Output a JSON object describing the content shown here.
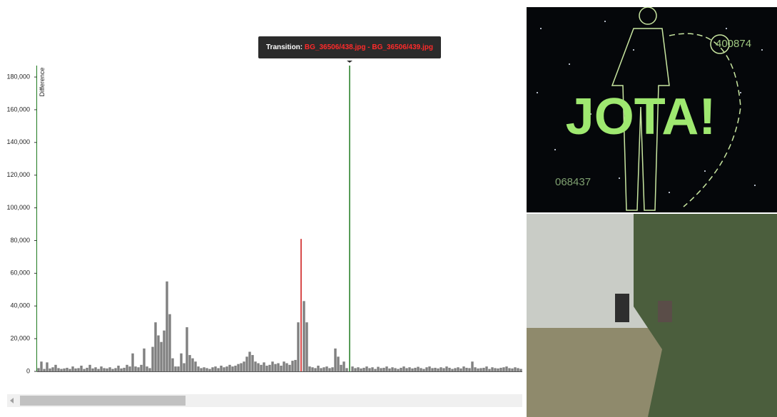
{
  "chart_data": {
    "type": "bar",
    "y_label": "Difference",
    "values": [
      2000,
      6000,
      1500,
      5500,
      1800,
      2500,
      4000,
      2000,
      1500,
      1800,
      2200,
      1500,
      3000,
      1800,
      2000,
      3500,
      1500,
      2200,
      4000,
      1800,
      2500,
      1500,
      3000,
      2000,
      1800,
      2500,
      1500,
      2000,
      3500,
      1800,
      2200,
      4000,
      3000,
      11000,
      3000,
      2500,
      4000,
      14000,
      3000,
      2000,
      15000,
      30000,
      22000,
      18000,
      25000,
      55000,
      35000,
      8000,
      3000,
      3000,
      11000,
      5000,
      27000,
      10000,
      8000,
      6000,
      3000,
      2000,
      2500,
      2000,
      1500,
      2500,
      3000,
      2000,
      3500,
      2500,
      3000,
      4000,
      3000,
      3500,
      4500,
      5000,
      6000,
      9000,
      12000,
      10000,
      6000,
      5000,
      4000,
      5500,
      3500,
      4000,
      6000,
      4500,
      5000,
      3500,
      6000,
      5000,
      4000,
      6500,
      7000,
      30000,
      81000,
      43000,
      30000,
      3000,
      2500,
      2000,
      3500,
      2000,
      2500,
      3000,
      2000,
      2500,
      14000,
      9000,
      4000,
      6000,
      2000,
      187000,
      3000,
      2000,
      2500,
      1800,
      2200,
      3000,
      2000,
      2500,
      1500,
      2800,
      2000,
      2200,
      3000,
      1800,
      2500,
      2000,
      1500,
      2200,
      3000,
      2000,
      2500,
      1800,
      2200,
      2800,
      2000,
      1500,
      2500,
      3000,
      2000,
      2200,
      1800,
      2500,
      2000,
      3000,
      2200,
      1500,
      2000,
      2500,
      1800,
      3000,
      2200,
      2000,
      6000,
      2500,
      1800,
      2000,
      2200,
      3000,
      1500,
      2500,
      2000,
      1800,
      2200,
      2500,
      3000,
      2000,
      1800,
      2500,
      2000,
      1500
    ],
    "color": "#808080",
    "highlighted": [
      {
        "index": 92,
        "color": "#cc1111"
      },
      {
        "index": 109,
        "color": "#1e7a1e"
      }
    ],
    "ylim": [
      0,
      187000
    ],
    "yticks": [
      0,
      {
        "value": 20000,
        "label": "20,000"
      },
      {
        "value": 40000,
        "label": "40,000"
      },
      {
        "value": 60000,
        "label": "60,000"
      },
      {
        "value": 80000,
        "label": "80,000"
      },
      {
        "value": 100000,
        "label": "100,000"
      },
      {
        "value": 120000,
        "label": "120,000"
      },
      {
        "value": 140000,
        "label": "140,000"
      },
      {
        "value": 160000,
        "label": "160,000"
      },
      {
        "value": 180000,
        "label": "180,000"
      }
    ],
    "tooltip": {
      "label": "Transition:",
      "text": "BG_36506/438.jpg - BG_36506/439.jpg"
    }
  },
  "images": {
    "top_texts": [
      "JOTA!",
      "400874",
      "068437"
    ]
  }
}
